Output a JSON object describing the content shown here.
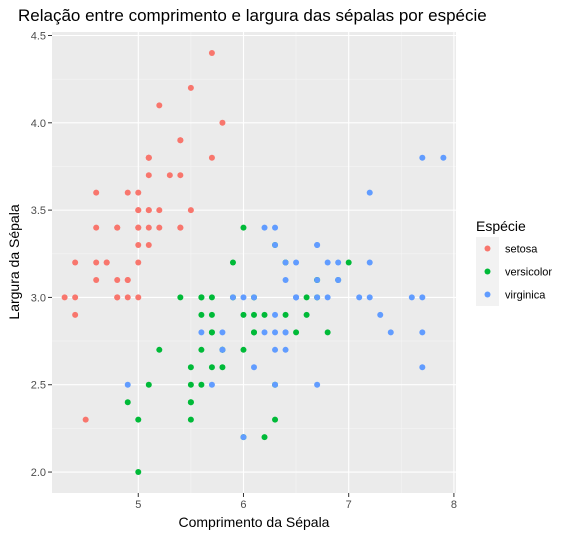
{
  "chart_data": {
    "type": "scatter",
    "title": "Relação entre comprimento e largura das sépalas por espécie",
    "xlabel": "Comprimento da Sépala",
    "ylabel": "Largura da Sépala",
    "xlim": [
      4.18,
      8.02
    ],
    "ylim": [
      1.88,
      4.52
    ],
    "x_ticks": [
      5,
      6,
      7,
      8
    ],
    "x_tick_labels": [
      "5",
      "6",
      "7",
      "8"
    ],
    "y_ticks": [
      2.0,
      2.5,
      3.0,
      3.5,
      4.0,
      4.5
    ],
    "y_tick_labels": [
      "2.0",
      "2.5",
      "3.0",
      "3.5",
      "4.0",
      "4.5"
    ],
    "grid": true,
    "legend": {
      "title": "Espécie",
      "position": "right"
    },
    "series": [
      {
        "name": "setosa",
        "color": "#F8766D",
        "points": [
          [
            5.1,
            3.5
          ],
          [
            4.9,
            3.0
          ],
          [
            4.7,
            3.2
          ],
          [
            4.6,
            3.1
          ],
          [
            5.0,
            3.6
          ],
          [
            5.4,
            3.9
          ],
          [
            4.6,
            3.4
          ],
          [
            5.0,
            3.4
          ],
          [
            4.4,
            2.9
          ],
          [
            4.9,
            3.1
          ],
          [
            5.4,
            3.7
          ],
          [
            4.8,
            3.4
          ],
          [
            4.8,
            3.0
          ],
          [
            4.3,
            3.0
          ],
          [
            5.8,
            4.0
          ],
          [
            5.7,
            4.4
          ],
          [
            5.4,
            3.9
          ],
          [
            5.1,
            3.5
          ],
          [
            5.7,
            3.8
          ],
          [
            5.1,
            3.8
          ],
          [
            5.4,
            3.4
          ],
          [
            5.1,
            3.7
          ],
          [
            4.6,
            3.6
          ],
          [
            5.1,
            3.3
          ],
          [
            4.8,
            3.4
          ],
          [
            5.0,
            3.0
          ],
          [
            5.0,
            3.4
          ],
          [
            5.2,
            3.5
          ],
          [
            5.2,
            3.4
          ],
          [
            4.7,
            3.2
          ],
          [
            4.8,
            3.1
          ],
          [
            5.4,
            3.4
          ],
          [
            5.2,
            4.1
          ],
          [
            5.5,
            4.2
          ],
          [
            4.9,
            3.1
          ],
          [
            5.0,
            3.2
          ],
          [
            5.5,
            3.5
          ],
          [
            4.9,
            3.6
          ],
          [
            4.4,
            3.0
          ],
          [
            5.1,
            3.4
          ],
          [
            5.0,
            3.5
          ],
          [
            4.5,
            2.3
          ],
          [
            4.4,
            3.2
          ],
          [
            5.0,
            3.5
          ],
          [
            5.1,
            3.8
          ],
          [
            4.8,
            3.0
          ],
          [
            5.1,
            3.8
          ],
          [
            4.6,
            3.2
          ],
          [
            5.3,
            3.7
          ],
          [
            5.0,
            3.3
          ]
        ]
      },
      {
        "name": "versicolor",
        "color": "#00BA38",
        "points": [
          [
            7.0,
            3.2
          ],
          [
            6.4,
            3.2
          ],
          [
            6.9,
            3.1
          ],
          [
            5.5,
            2.3
          ],
          [
            6.5,
            2.8
          ],
          [
            5.7,
            2.8
          ],
          [
            6.3,
            3.3
          ],
          [
            4.9,
            2.4
          ],
          [
            6.6,
            2.9
          ],
          [
            5.2,
            2.7
          ],
          [
            5.0,
            2.0
          ],
          [
            5.9,
            3.0
          ],
          [
            6.0,
            2.2
          ],
          [
            6.1,
            2.9
          ],
          [
            5.6,
            2.9
          ],
          [
            6.7,
            3.1
          ],
          [
            5.6,
            3.0
          ],
          [
            5.8,
            2.7
          ],
          [
            6.2,
            2.2
          ],
          [
            5.6,
            2.5
          ],
          [
            5.9,
            3.2
          ],
          [
            6.1,
            2.8
          ],
          [
            6.3,
            2.5
          ],
          [
            6.1,
            2.8
          ],
          [
            6.4,
            2.9
          ],
          [
            6.6,
            3.0
          ],
          [
            6.8,
            2.8
          ],
          [
            6.7,
            3.0
          ],
          [
            6.0,
            2.9
          ],
          [
            5.7,
            2.6
          ],
          [
            5.5,
            2.4
          ],
          [
            5.5,
            2.4
          ],
          [
            5.8,
            2.7
          ],
          [
            6.0,
            2.7
          ],
          [
            5.4,
            3.0
          ],
          [
            6.0,
            3.4
          ],
          [
            6.7,
            3.1
          ],
          [
            6.3,
            2.3
          ],
          [
            5.6,
            3.0
          ],
          [
            5.5,
            2.5
          ],
          [
            5.5,
            2.6
          ],
          [
            6.1,
            3.0
          ],
          [
            5.8,
            2.6
          ],
          [
            5.0,
            2.3
          ],
          [
            5.6,
            2.7
          ],
          [
            5.7,
            3.0
          ],
          [
            5.7,
            2.9
          ],
          [
            6.2,
            2.9
          ],
          [
            5.1,
            2.5
          ],
          [
            5.7,
            2.8
          ]
        ]
      },
      {
        "name": "virginica",
        "color": "#619CFF",
        "points": [
          [
            6.3,
            3.3
          ],
          [
            5.8,
            2.7
          ],
          [
            7.1,
            3.0
          ],
          [
            6.3,
            2.9
          ],
          [
            6.5,
            3.0
          ],
          [
            7.6,
            3.0
          ],
          [
            4.9,
            2.5
          ],
          [
            7.3,
            2.9
          ],
          [
            6.7,
            2.5
          ],
          [
            7.2,
            3.6
          ],
          [
            6.5,
            3.2
          ],
          [
            6.4,
            2.7
          ],
          [
            6.8,
            3.0
          ],
          [
            5.7,
            2.5
          ],
          [
            5.8,
            2.8
          ],
          [
            6.4,
            3.2
          ],
          [
            6.5,
            3.0
          ],
          [
            7.7,
            3.8
          ],
          [
            7.7,
            2.6
          ],
          [
            6.0,
            2.2
          ],
          [
            6.9,
            3.2
          ],
          [
            5.6,
            2.8
          ],
          [
            7.7,
            2.8
          ],
          [
            6.3,
            2.7
          ],
          [
            6.7,
            3.3
          ],
          [
            7.2,
            3.2
          ],
          [
            6.2,
            2.8
          ],
          [
            6.1,
            3.0
          ],
          [
            6.4,
            2.8
          ],
          [
            7.2,
            3.0
          ],
          [
            7.4,
            2.8
          ],
          [
            7.9,
            3.8
          ],
          [
            6.4,
            2.8
          ],
          [
            6.3,
            2.8
          ],
          [
            6.1,
            2.6
          ],
          [
            7.7,
            3.0
          ],
          [
            6.3,
            3.4
          ],
          [
            6.4,
            3.1
          ],
          [
            6.0,
            3.0
          ],
          [
            6.9,
            3.1
          ],
          [
            6.7,
            3.1
          ],
          [
            6.9,
            3.1
          ],
          [
            5.8,
            2.7
          ],
          [
            6.8,
            3.2
          ],
          [
            6.7,
            3.3
          ],
          [
            6.7,
            3.0
          ],
          [
            6.3,
            2.5
          ],
          [
            6.5,
            3.0
          ],
          [
            6.2,
            3.4
          ],
          [
            5.9,
            3.0
          ]
        ]
      }
    ]
  }
}
